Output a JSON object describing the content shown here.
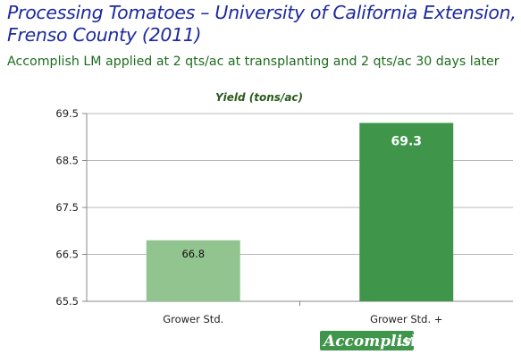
{
  "header": {
    "title": "Processing Tomatoes – University of California Extension, Frenso County (2011)",
    "subtitle": "Accomplish LM applied at 2 qts/ac at transplanting and 2 qts/ac 30 days later"
  },
  "logo": {
    "word": "Accomplish",
    "suffix": "LM"
  },
  "chart_data": {
    "type": "bar",
    "title": "Yield (tons/ac)",
    "xlabel": "",
    "ylabel": "",
    "categories": [
      "Grower Std.",
      "Grower Std. +"
    ],
    "values": [
      66.8,
      69.3
    ],
    "value_labels": [
      "66.8",
      "69.3"
    ],
    "ylim": [
      65.5,
      69.5
    ],
    "yticks": [
      65.5,
      66.5,
      67.5,
      68.5,
      69.5
    ],
    "ytick_labels": [
      "65.5",
      "66.5",
      "67.5",
      "68.5",
      "69.5"
    ],
    "grid": true,
    "legend": "none",
    "colors": [
      "#92c48f",
      "#3f954a"
    ]
  }
}
